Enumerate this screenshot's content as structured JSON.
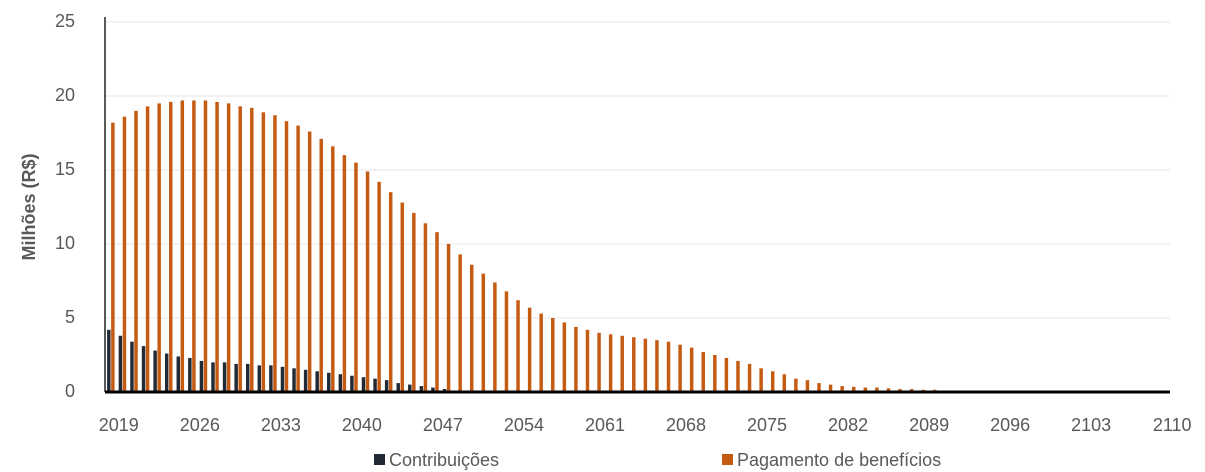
{
  "chart_data": {
    "type": "bar",
    "y_label": "Milhões (R$)",
    "categories": [
      "2019",
      null,
      null,
      null,
      null,
      null,
      null,
      "2026",
      null,
      null,
      null,
      null,
      null,
      null,
      "2033",
      null,
      null,
      null,
      null,
      null,
      null,
      "2040",
      null,
      null,
      null,
      null,
      null,
      null,
      "2047",
      null,
      null,
      null,
      null,
      null,
      null,
      "2054",
      null,
      null,
      null,
      null,
      null,
      null,
      "2061",
      null,
      null,
      null,
      null,
      null,
      null,
      "2068",
      null,
      null,
      null,
      null,
      null,
      null,
      "2075",
      null,
      null,
      null,
      null,
      null,
      null,
      "2082",
      null,
      null,
      null,
      null,
      null,
      null,
      "2089",
      null,
      null,
      null,
      null,
      null,
      null,
      "2096",
      null,
      null,
      null,
      null,
      null,
      null,
      "2103",
      null,
      null,
      null,
      null,
      null,
      null,
      "2110"
    ],
    "series": [
      {
        "name": "Contribuições",
        "color": "#222a35",
        "values": [
          4.2,
          3.8,
          3.4,
          3.1,
          2.8,
          2.6,
          2.4,
          2.3,
          2.1,
          2.0,
          2.0,
          1.9,
          1.9,
          1.8,
          1.8,
          1.7,
          1.6,
          1.5,
          1.4,
          1.3,
          1.2,
          1.1,
          1.0,
          0.9,
          0.8,
          0.6,
          0.5,
          0.4,
          0.3,
          0.2,
          0.1,
          0,
          0,
          0,
          0,
          0,
          0,
          0,
          0,
          0,
          0,
          0,
          0,
          0,
          0,
          0,
          0,
          0,
          0,
          0,
          0,
          0,
          0,
          0,
          0,
          0,
          0,
          0,
          0,
          0,
          0,
          0,
          0,
          0,
          0,
          0,
          0,
          0,
          0,
          0,
          0,
          0,
          0,
          0,
          0,
          0,
          0,
          0,
          0,
          0,
          0,
          0,
          0,
          0,
          0,
          0,
          0,
          0,
          0,
          0,
          0,
          0
        ]
      },
      {
        "name": "Pagamento de benefícios",
        "color": "#c55a11",
        "values": [
          18.2,
          18.6,
          19.0,
          19.3,
          19.5,
          19.6,
          19.7,
          19.7,
          19.7,
          19.6,
          19.5,
          19.3,
          19.2,
          18.9,
          18.7,
          18.3,
          18.0,
          17.6,
          17.1,
          16.6,
          16.0,
          15.5,
          14.9,
          14.2,
          13.5,
          12.8,
          12.1,
          11.4,
          10.8,
          10.0,
          9.3,
          8.6,
          8.0,
          7.4,
          6.8,
          6.2,
          5.7,
          5.3,
          5.0,
          4.7,
          4.4,
          4.2,
          4.0,
          3.9,
          3.8,
          3.7,
          3.6,
          3.5,
          3.4,
          3.2,
          3.0,
          2.7,
          2.5,
          2.3,
          2.1,
          1.9,
          1.6,
          1.4,
          1.2,
          0.9,
          0.8,
          0.6,
          0.5,
          0.4,
          0.35,
          0.3,
          0.3,
          0.25,
          0.2,
          0.2,
          0.15,
          0.15,
          0.1,
          0.1,
          0.1,
          0.1,
          0.1,
          0.05,
          0.05,
          0,
          0,
          0,
          0,
          0,
          0,
          0,
          0,
          0,
          0,
          0,
          0,
          0
        ]
      }
    ],
    "ylim": [
      0,
      25
    ],
    "yticks": [
      0,
      5,
      10,
      15,
      20,
      25
    ],
    "grid": true,
    "legend": "bottom"
  }
}
